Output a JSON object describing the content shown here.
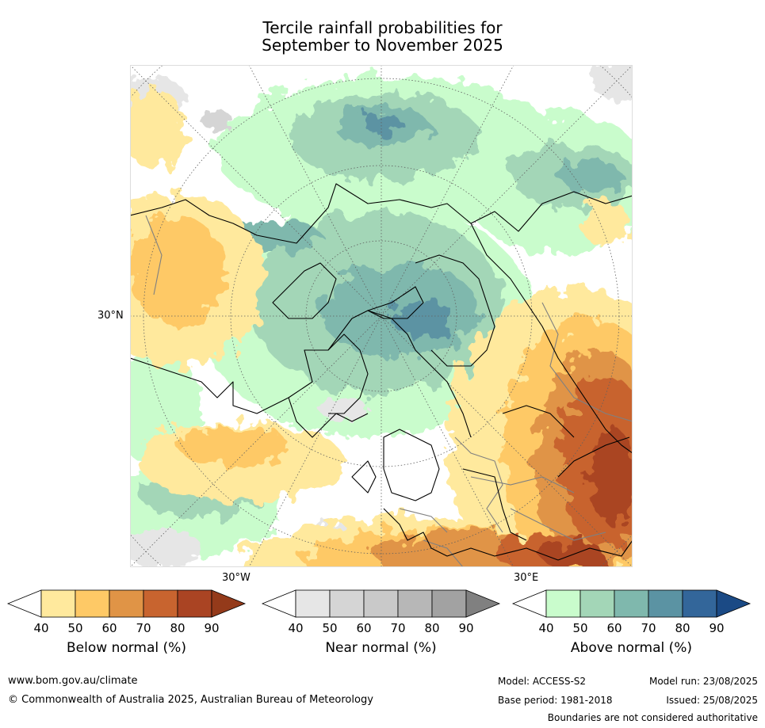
{
  "title": {
    "line1": "Tercile rainfall probabilities for",
    "line2": "September to November 2025"
  },
  "map": {
    "projection": "north-polar-stereographic",
    "axis_labels": {
      "left_lat": "30°N",
      "bottom_left_lon": "30°W",
      "bottom_right_lon": "30°E"
    },
    "colors": {
      "below": [
        "#ffffff",
        "#ffe99d",
        "#fec966",
        "#e09446",
        "#c8642f",
        "#aa4423",
        "#943a1a"
      ],
      "near": [
        "#ffffff",
        "#e6e6e6",
        "#d5d5d5",
        "#c9c9c9",
        "#b7b7b7",
        "#a2a2a2",
        "#808080"
      ],
      "above": [
        "#ffffff",
        "#c9fccc",
        "#a3d6b7",
        "#7fb8ad",
        "#5b93a3",
        "#33669a",
        "#1b4a85"
      ],
      "coast": "#000000",
      "borders": "#808080"
    }
  },
  "colorbars": [
    {
      "label": "Below normal (%)",
      "ticks": [
        "40",
        "50",
        "60",
        "70",
        "80",
        "90"
      ]
    },
    {
      "label": "Near normal (%)",
      "ticks": [
        "40",
        "50",
        "60",
        "70",
        "80",
        "90"
      ]
    },
    {
      "label": "Above normal (%)",
      "ticks": [
        "40",
        "50",
        "60",
        "70",
        "80",
        "90"
      ]
    }
  ],
  "footer": {
    "url": "www.bom.gov.au/climate",
    "copyright": "© Commonwealth of Australia 2025, Australian Bureau of Meteorology",
    "model": "Model: ACCESS-S2",
    "base_period": "Base period: 1981-2018",
    "model_run": "Model run: 23/08/2025",
    "issued": "Issued: 25/08/2025",
    "disclaimer": "Boundaries are not considered authoritative"
  }
}
